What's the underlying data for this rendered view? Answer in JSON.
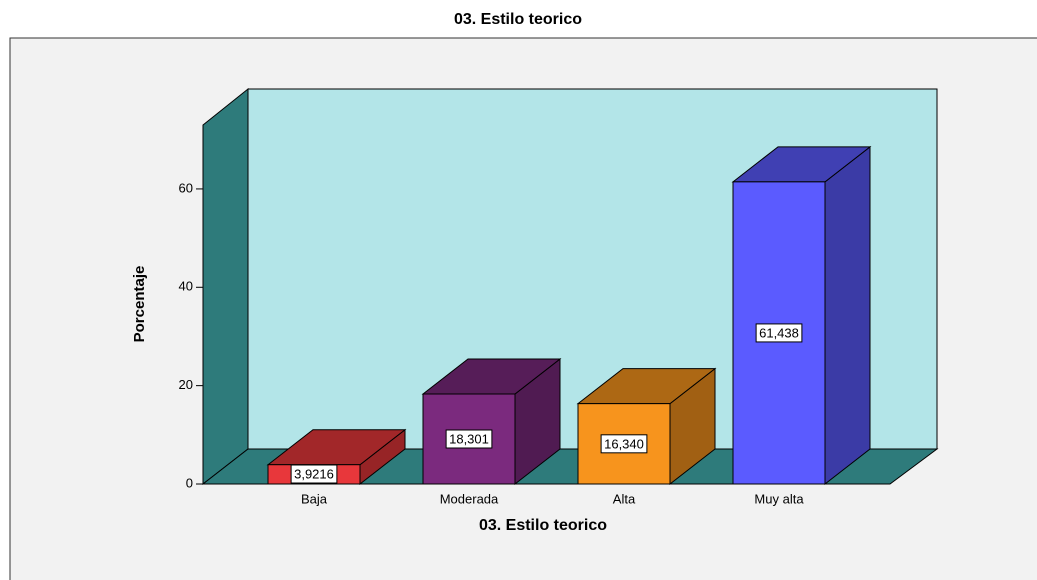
{
  "chart_data": {
    "type": "bar3d",
    "title": "03. Estilo teorico",
    "x_label": "03. Estilo teorico",
    "y_label": "Porcentaje",
    "categories": [
      "Baja",
      "Moderada",
      "Alta",
      "Muy alta"
    ],
    "values": [
      3.9216,
      18.301,
      16.34,
      61.438
    ],
    "value_labels": [
      "3,9216",
      "18,301",
      "16,340",
      "61,438"
    ],
    "colors": [
      "#e8373b",
      "#7b2a7e",
      "#f7941d",
      "#5b5bff"
    ],
    "ylim": [
      0,
      73
    ],
    "yticks": [
      0,
      20,
      40,
      60
    ]
  }
}
